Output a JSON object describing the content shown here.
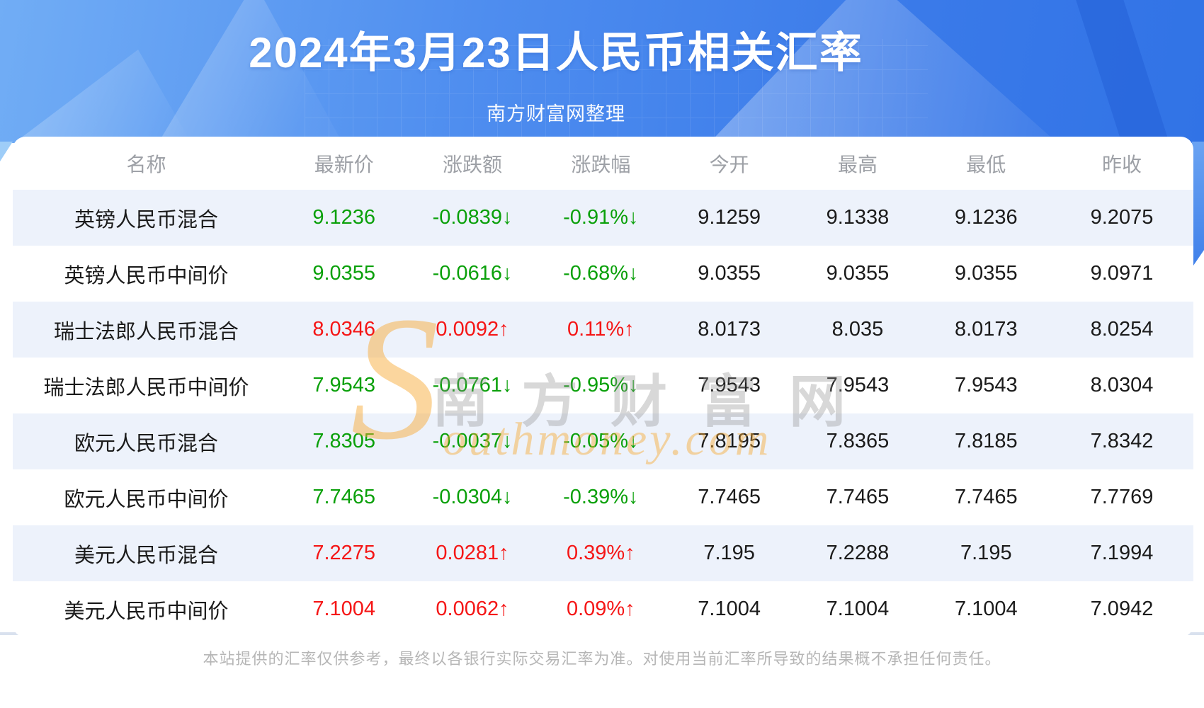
{
  "header": {
    "title": "2024年3月23日人民币相关汇率",
    "subtitle": "南方财富网整理"
  },
  "watermark": {
    "big_s": "S",
    "cjk": "南方财富网",
    "en": "outhmoney.com"
  },
  "table": {
    "columns": [
      "名称",
      "最新价",
      "涨跌额",
      "涨跌幅",
      "今开",
      "最高",
      "最低",
      "昨收"
    ],
    "rows": [
      {
        "name": "英镑人民币混合",
        "latest": "9.1236",
        "change": "-0.0839",
        "pct": "-0.91%",
        "arrow": "↓",
        "trend": "down",
        "open": "9.1259",
        "high": "9.1338",
        "low": "9.1236",
        "prev": "9.2075"
      },
      {
        "name": "英镑人民币中间价",
        "latest": "9.0355",
        "change": "-0.0616",
        "pct": "-0.68%",
        "arrow": "↓",
        "trend": "down",
        "open": "9.0355",
        "high": "9.0355",
        "low": "9.0355",
        "prev": "9.0971"
      },
      {
        "name": "瑞士法郎人民币混合",
        "latest": "8.0346",
        "change": "0.0092",
        "pct": "0.11%",
        "arrow": "↑",
        "trend": "up",
        "open": "8.0173",
        "high": "8.035",
        "low": "8.0173",
        "prev": "8.0254"
      },
      {
        "name": "瑞士法郎人民币中间价",
        "latest": "7.9543",
        "change": "-0.0761",
        "pct": "-0.95%",
        "arrow": "↓",
        "trend": "down",
        "open": "7.9543",
        "high": "7.9543",
        "low": "7.9543",
        "prev": "8.0304"
      },
      {
        "name": "欧元人民币混合",
        "latest": "7.8305",
        "change": "-0.0037",
        "pct": "-0.05%",
        "arrow": "↓",
        "trend": "down",
        "open": "7.8195",
        "high": "7.8365",
        "low": "7.8185",
        "prev": "7.8342"
      },
      {
        "name": "欧元人民币中间价",
        "latest": "7.7465",
        "change": "-0.0304",
        "pct": "-0.39%",
        "arrow": "↓",
        "trend": "down",
        "open": "7.7465",
        "high": "7.7465",
        "low": "7.7465",
        "prev": "7.7769"
      },
      {
        "name": "美元人民币混合",
        "latest": "7.2275",
        "change": "0.0281",
        "pct": "0.39%",
        "arrow": "↑",
        "trend": "up",
        "open": "7.195",
        "high": "7.2288",
        "low": "7.195",
        "prev": "7.1994"
      },
      {
        "name": "美元人民币中间价",
        "latest": "7.1004",
        "change": "0.0062",
        "pct": "0.09%",
        "arrow": "↑",
        "trend": "up",
        "open": "7.1004",
        "high": "7.1004",
        "low": "7.1004",
        "prev": "7.0942"
      }
    ]
  },
  "footer": {
    "disclaimer": "本站提供的汇率仅供参考，最终以各银行实际交易汇率为准。对使用当前汇率所导致的结果概不承担任何责任。"
  },
  "colors": {
    "up_red": "#f51616",
    "down_green": "#0aa00a",
    "stripe": "#edf2fb",
    "banner_blue_light": "#71adf5",
    "banner_blue_dark": "#3173e6",
    "watermark_orange": "#f6aa34",
    "header_text_gray": "#9da0a6",
    "footer_text_gray": "#b6b6b6"
  }
}
